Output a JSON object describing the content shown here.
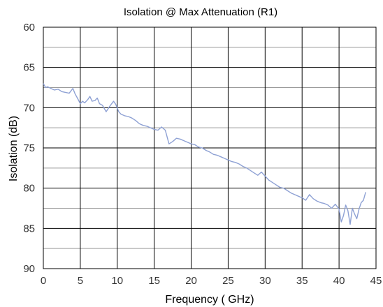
{
  "chart_data": {
    "type": "line",
    "title": "Isolation @ Max Attenuation (R1)",
    "xlabel": "Frequency ( GHz)",
    "ylabel": "Isolation (dB)",
    "xlim": [
      0,
      45
    ],
    "ylim": [
      90,
      60
    ],
    "y_axis_inverted": true,
    "xticks": [
      0,
      5,
      10,
      15,
      20,
      25,
      30,
      35,
      40,
      45
    ],
    "yticks": [
      60,
      65,
      70,
      75,
      80,
      85,
      90
    ],
    "x_major_grid_step": 5,
    "y_major_grid_step": 5,
    "y_minor_grid_step": 2.5,
    "grid": true,
    "legend": "none",
    "line_color": "#8ea1d4",
    "series": [
      {
        "x": [
          0.0,
          0.3,
          0.6,
          1.0,
          1.5,
          2.0,
          2.5,
          3.0,
          3.5,
          4.0,
          4.3,
          4.6,
          5.0,
          5.3,
          5.6,
          6.0,
          6.3,
          6.6,
          7.0,
          7.3,
          7.6,
          8.0,
          8.5,
          9.0,
          9.5,
          9.8,
          10.2,
          10.5,
          11.0,
          11.5,
          12.0,
          12.5,
          13.0,
          13.5,
          14.0,
          14.5,
          15.0,
          15.5,
          16.0,
          16.5,
          17.0,
          17.5,
          18.0,
          18.5,
          19.0,
          19.5,
          20.0,
          20.5,
          21.0,
          21.5,
          22.0,
          22.5,
          23.0,
          23.5,
          24.0,
          24.5,
          25.0,
          25.5,
          26.0,
          26.5,
          27.0,
          27.5,
          28.0,
          28.5,
          29.0,
          29.5,
          30.0,
          30.5,
          31.0,
          31.5,
          32.0,
          32.5,
          33.0,
          33.5,
          34.0,
          34.5,
          35.0,
          35.5,
          36.0,
          36.5,
          37.0,
          37.5,
          38.0,
          38.5,
          39.0,
          39.5,
          40.0,
          40.3,
          40.6,
          40.9,
          41.2,
          41.5,
          41.8,
          42.1,
          42.4,
          42.7,
          43.0,
          43.3,
          43.6
        ],
        "y": [
          67.0,
          67.5,
          67.4,
          67.6,
          67.8,
          67.7,
          68.0,
          68.1,
          68.2,
          67.6,
          68.3,
          68.8,
          69.5,
          69.2,
          69.4,
          69.0,
          68.6,
          69.2,
          69.1,
          68.8,
          69.5,
          69.7,
          70.5,
          69.8,
          69.2,
          69.6,
          70.5,
          70.8,
          71.0,
          71.1,
          71.3,
          71.6,
          72.0,
          72.2,
          72.3,
          72.5,
          72.7,
          72.8,
          72.4,
          72.8,
          74.5,
          74.2,
          73.8,
          73.9,
          74.1,
          74.3,
          74.5,
          74.6,
          74.9,
          75.0,
          75.3,
          75.5,
          75.8,
          75.9,
          76.1,
          76.3,
          76.5,
          76.7,
          76.8,
          77.0,
          77.3,
          77.5,
          77.8,
          78.1,
          78.4,
          78.0,
          78.5,
          79.0,
          79.3,
          79.6,
          79.9,
          80.0,
          80.3,
          80.6,
          80.8,
          81.0,
          81.2,
          81.5,
          80.8,
          81.3,
          81.6,
          81.8,
          81.9,
          82.1,
          82.5,
          82.0,
          82.6,
          84.2,
          83.4,
          82.1,
          82.8,
          84.5,
          82.5,
          83.2,
          83.8,
          82.6,
          81.8,
          81.5,
          80.5
        ]
      }
    ]
  }
}
